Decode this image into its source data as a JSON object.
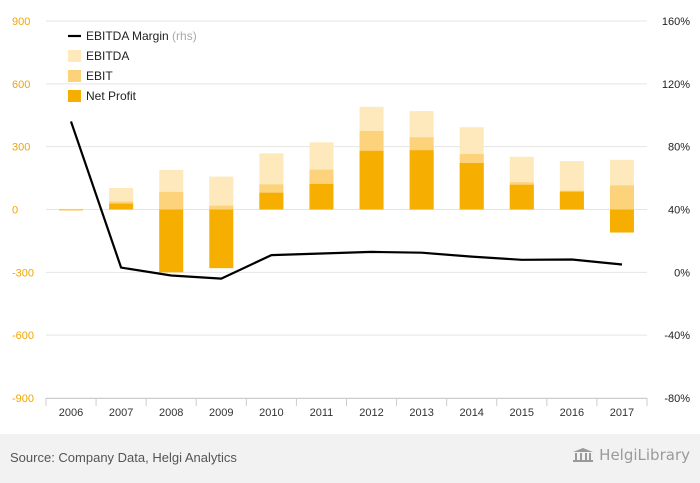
{
  "chart_data": {
    "type": "bar",
    "categories": [
      "2006",
      "2007",
      "2008",
      "2009",
      "2010",
      "2011",
      "2012",
      "2013",
      "2014",
      "2015",
      "2016",
      "2017"
    ],
    "series": [
      {
        "name": "EBITDA",
        "values": [
          3,
          103,
          189,
          157,
          268,
          321,
          490,
          470,
          393,
          252,
          231,
          237
        ]
      },
      {
        "name": "EBIT",
        "values": [
          -2,
          38,
          84,
          18,
          120,
          190,
          375,
          345,
          265,
          130,
          90,
          115
        ]
      },
      {
        "name": "Net Profit",
        "values": [
          -2,
          28,
          -300,
          -280,
          80,
          122,
          280,
          283,
          222,
          118,
          85,
          -110
        ]
      },
      {
        "name": "EBITDA Margin",
        "axis": "right",
        "values": [
          96,
          3,
          -2,
          -4,
          11,
          12,
          13,
          12.5,
          10,
          8,
          8.2,
          5
        ]
      }
    ],
    "left_axis": {
      "ticks": [
        900,
        600,
        300,
        0,
        -300,
        -600,
        -900
      ],
      "ylim": [
        -900,
        900
      ]
    },
    "right_axis": {
      "ticks": [
        "160%",
        "120%",
        "80%",
        "40%",
        "0%",
        "-40%",
        "-80%"
      ],
      "ylim": [
        -80,
        160
      ]
    },
    "legend": {
      "placement": "top-left",
      "items": [
        {
          "label": "EBITDA Margin",
          "suffix": "(rhs)",
          "kind": "line"
        },
        {
          "label": "EBITDA",
          "kind": "box"
        },
        {
          "label": "EBIT",
          "kind": "box"
        },
        {
          "label": "Net Profit",
          "kind": "box"
        }
      ]
    },
    "colors": {
      "EBITDA": "#fde9bb",
      "EBIT": "#fcd27a",
      "Net Profit": "#f6ae00",
      "EBITDA Margin": "#000000",
      "grid": "#e5e5e5",
      "left_tick": "#f0a500",
      "right_tick": "#222222"
    },
    "grid": true
  },
  "footer": {
    "source": "Source: Company Data, Helgi Analytics",
    "logo_text": "HelgiLibrary"
  }
}
